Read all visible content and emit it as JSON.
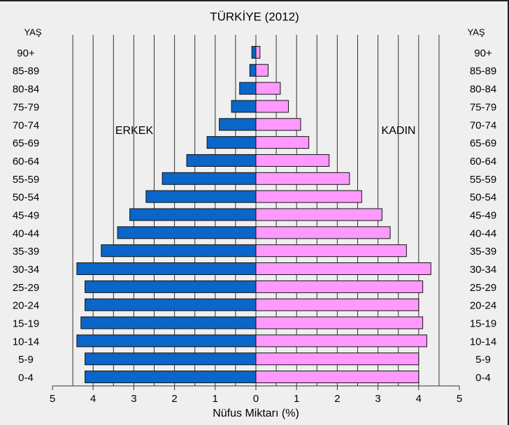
{
  "chart_data": {
    "type": "pyramid",
    "title": "TÜRKİYE (2012)",
    "x_label": "Nüfus Miktarı (%)",
    "y_label": "YAŞ",
    "categories": [
      "0-4",
      "5-9",
      "10-14",
      "15-19",
      "20-24",
      "25-29",
      "30-34",
      "35-39",
      "40-44",
      "45-49",
      "50-54",
      "55-59",
      "60-64",
      "65-69",
      "70-74",
      "75-79",
      "80-84",
      "85-89",
      "90+"
    ],
    "series": [
      {
        "name": "ERKEK",
        "color": "#0a66c8",
        "side": "left",
        "values": [
          4.2,
          4.2,
          4.4,
          4.3,
          4.2,
          4.2,
          4.4,
          3.8,
          3.4,
          3.1,
          2.7,
          2.3,
          1.7,
          1.2,
          0.9,
          0.6,
          0.4,
          0.15,
          0.1
        ]
      },
      {
        "name": "KADIN",
        "color": "#ff99ff",
        "side": "right",
        "values": [
          4.0,
          4.0,
          4.2,
          4.1,
          4.0,
          4.1,
          4.3,
          3.7,
          3.3,
          3.1,
          2.6,
          2.3,
          1.8,
          1.3,
          1.1,
          0.8,
          0.6,
          0.3,
          0.1
        ]
      }
    ],
    "xlim": [
      -5,
      5
    ],
    "xticks": [
      {
        "value": -5,
        "label": "5"
      },
      {
        "value": -4,
        "label": "4"
      },
      {
        "value": -3,
        "label": "3"
      },
      {
        "value": -2,
        "label": "2"
      },
      {
        "value": -1,
        "label": "1"
      },
      0,
      1,
      2,
      3,
      4,
      5
    ],
    "grid_lines": [
      -4.5,
      -4,
      -3.5,
      -3,
      -2.5,
      -2,
      -1.5,
      -1,
      -0.5,
      0,
      0.5,
      1,
      1.5,
      2,
      2.5,
      3,
      3.5,
      4,
      4.5
    ],
    "grid": true
  }
}
